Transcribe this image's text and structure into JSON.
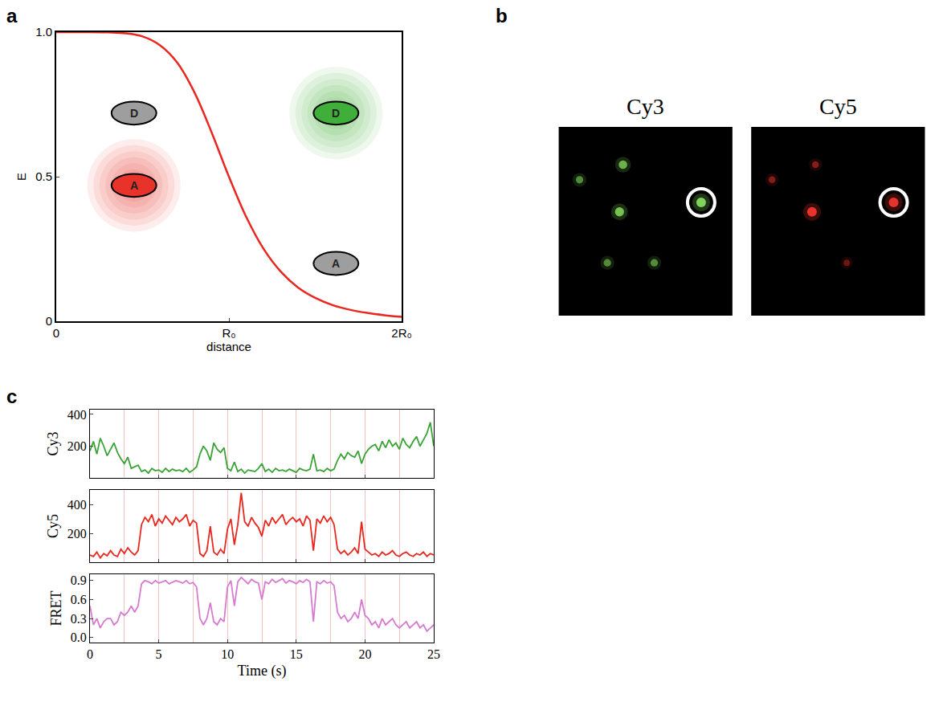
{
  "chart_data": [
    {
      "panel": "a",
      "type": "line",
      "xlabel": "distance",
      "ylabel": "E",
      "x": [
        0,
        0.1,
        0.2,
        0.3,
        0.4,
        0.5,
        0.6,
        0.7,
        0.8,
        0.9,
        1.0,
        1.1,
        1.2,
        1.3,
        1.4,
        1.5,
        1.6,
        1.7,
        1.8,
        1.9,
        2.0
      ],
      "values": [
        1,
        1,
        1,
        0.999,
        0.996,
        0.985,
        0.955,
        0.895,
        0.792,
        0.653,
        0.5,
        0.361,
        0.251,
        0.172,
        0.117,
        0.081,
        0.056,
        0.04,
        0.029,
        0.021,
        0.015
      ],
      "color": "#e8271f",
      "xlim": [
        0,
        2
      ],
      "xticks": [
        0,
        {
          "value": 1,
          "label": "R₀"
        },
        {
          "value": 2,
          "label": "2R₀"
        }
      ],
      "ylim": [
        0,
        1
      ],
      "yticks": [
        0,
        0.5,
        {
          "value": 1,
          "label": "1.0"
        }
      ],
      "grid": false,
      "illustrations": [
        {
          "label": "D",
          "color": "#9e9e9e",
          "marker": "plain"
        },
        {
          "label": "A",
          "color": "#e8332a",
          "marker": "glow"
        },
        {
          "label": "D",
          "color": "#3fae3a",
          "marker": "glow"
        },
        {
          "label": "A",
          "color": "#9e9e9e",
          "marker": "plain"
        }
      ]
    },
    {
      "panel": "b",
      "type": "image",
      "tick_labels": false,
      "xlim": [
        0,
        100
      ],
      "ylim": [
        100,
        0
      ],
      "images": [
        {
          "title": "Cy3",
          "color": "#7fd35a",
          "spots": {
            "x": [
              12,
              37,
              35,
              82,
              28,
              55
            ],
            "y": [
              28,
              20,
              45,
              40,
              72,
              72
            ],
            "intensity": [
              0.6,
              0.8,
              0.9,
              1.0,
              0.6,
              0.6
            ]
          },
          "highlight": 3
        },
        {
          "title": "Cy5",
          "color": "#e8332a",
          "spots": {
            "x": [
              12,
              37,
              35,
              82,
              55
            ],
            "y": [
              28,
              20,
              45,
              40,
              72
            ],
            "intensity": [
              0.5,
              0.5,
              1.0,
              1.0,
              0.4
            ]
          },
          "highlight": 3
        }
      ]
    },
    {
      "panel": "c",
      "type": "line",
      "xlabel": "Time (s)",
      "grid": true,
      "xlim": [
        0,
        25
      ],
      "xticks": [
        0,
        5,
        10,
        15,
        20,
        25
      ],
      "x": [
        0,
        0.25,
        0.5,
        0.75,
        1,
        1.25,
        1.5,
        1.75,
        2,
        2.25,
        2.5,
        2.75,
        3,
        3.25,
        3.5,
        3.75,
        4,
        4.25,
        4.5,
        4.75,
        5,
        5.25,
        5.5,
        5.75,
        6,
        6.25,
        6.5,
        6.75,
        7,
        7.25,
        7.5,
        7.75,
        8,
        8.25,
        8.5,
        8.75,
        9,
        9.25,
        9.5,
        9.75,
        10,
        10.25,
        10.5,
        10.75,
        11,
        11.25,
        11.5,
        11.75,
        12,
        12.25,
        12.5,
        12.75,
        13,
        13.25,
        13.5,
        13.75,
        14,
        14.25,
        14.5,
        14.75,
        15,
        15.25,
        15.5,
        15.75,
        16,
        16.25,
        16.5,
        16.75,
        17,
        17.25,
        17.5,
        17.75,
        18,
        18.25,
        18.5,
        18.75,
        19,
        19.25,
        19.5,
        19.75,
        20,
        20.25,
        20.5,
        20.75,
        21,
        21.25,
        21.5,
        21.75,
        22,
        22.25,
        22.5,
        22.75,
        23,
        23.25,
        23.5,
        23.75,
        24,
        24.25,
        24.5,
        24.75,
        25
      ],
      "series": [
        {
          "name": "Cy3",
          "color": "#3aa335",
          "ylim": [
            0,
            430
          ],
          "yticks": [
            200,
            400
          ],
          "values": [
            170,
            230,
            150,
            250,
            200,
            140,
            180,
            220,
            160,
            120,
            90,
            130,
            60,
            70,
            80,
            40,
            50,
            30,
            60,
            45,
            50,
            35,
            60,
            40,
            55,
            45,
            50,
            40,
            60,
            35,
            50,
            70,
            150,
            200,
            170,
            110,
            220,
            180,
            160,
            190,
            60,
            45,
            100,
            40,
            55,
            30,
            50,
            45,
            40,
            60,
            90,
            40,
            55,
            35,
            60,
            45,
            50,
            40,
            55,
            45,
            35,
            60,
            50,
            45,
            55,
            150,
            45,
            50,
            40,
            60,
            45,
            55,
            110,
            150,
            120,
            160,
            140,
            130,
            170,
            90,
            150,
            180,
            200,
            210,
            170,
            230,
            190,
            240,
            200,
            220,
            180,
            250,
            210,
            190,
            230,
            260,
            200,
            240,
            280,
            350,
            200
          ]
        },
        {
          "name": "Cy5",
          "color": "#e8281e",
          "ylim": [
            0,
            500
          ],
          "yticks": [
            200,
            400
          ],
          "values": [
            50,
            40,
            70,
            30,
            60,
            45,
            80,
            50,
            40,
            90,
            60,
            100,
            70,
            50,
            80,
            260,
            310,
            280,
            330,
            250,
            300,
            270,
            320,
            290,
            260,
            310,
            280,
            300,
            330,
            250,
            290,
            270,
            60,
            40,
            80,
            250,
            70,
            50,
            90,
            60,
            230,
            300,
            120,
            260,
            480,
            280,
            250,
            310,
            270,
            240,
            180,
            290,
            250,
            310,
            270,
            300,
            330,
            260,
            290,
            310,
            280,
            300,
            250,
            320,
            290,
            80,
            300,
            270,
            320,
            280,
            310,
            260,
            90,
            60,
            80,
            50,
            70,
            100,
            60,
            280,
            90,
            70,
            50,
            60,
            40,
            70,
            50,
            60,
            80,
            50,
            40,
            60,
            70,
            50,
            40,
            60,
            50,
            70,
            40,
            60,
            50
          ]
        },
        {
          "name": "FRET",
          "color": "#d77bd0",
          "ylim": [
            -0.08,
            1.0
          ],
          "yticks": [
            {
              "value": 0,
              "label": "0.0"
            },
            0.3,
            0.6,
            0.9
          ],
          "values": [
            0.5,
            0.2,
            0.3,
            0.15,
            0.25,
            0.3,
            0.3,
            0.2,
            0.25,
            0.4,
            0.35,
            0.4,
            0.5,
            0.4,
            0.5,
            0.85,
            0.9,
            0.88,
            0.85,
            0.9,
            0.86,
            0.88,
            0.9,
            0.85,
            0.87,
            0.9,
            0.88,
            0.86,
            0.9,
            0.85,
            0.87,
            0.8,
            0.3,
            0.2,
            0.3,
            0.55,
            0.25,
            0.2,
            0.3,
            0.25,
            0.8,
            0.9,
            0.5,
            0.88,
            0.95,
            0.9,
            0.85,
            0.92,
            0.88,
            0.86,
            0.6,
            0.88,
            0.85,
            0.92,
            0.87,
            0.9,
            0.93,
            0.86,
            0.9,
            0.88,
            0.85,
            0.9,
            0.87,
            0.92,
            0.88,
            0.25,
            0.88,
            0.85,
            0.9,
            0.86,
            0.88,
            0.82,
            0.4,
            0.3,
            0.35,
            0.25,
            0.3,
            0.4,
            0.3,
            0.6,
            0.35,
            0.3,
            0.2,
            0.25,
            0.15,
            0.3,
            0.2,
            0.25,
            0.3,
            0.2,
            0.15,
            0.2,
            0.25,
            0.15,
            0.2,
            0.25,
            0.15,
            0.2,
            0.1,
            0.15,
            0.2
          ]
        }
      ]
    }
  ]
}
